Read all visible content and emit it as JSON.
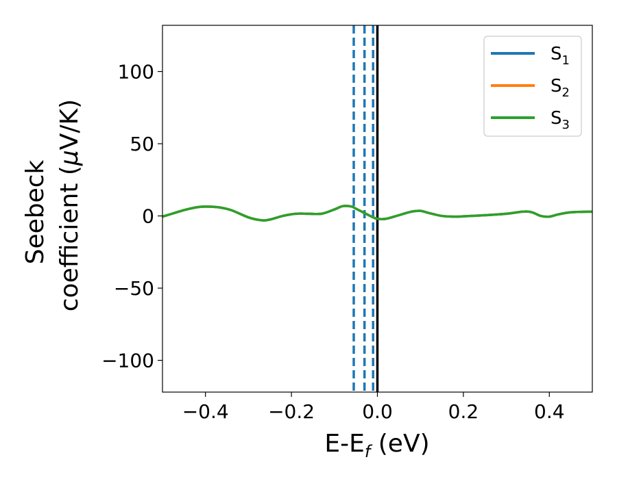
{
  "chart_data": {
    "type": "line",
    "xlabel": "E-E",
    "xlabel_sub": "f",
    "xlabel_unit": " (eV)",
    "ylabel_line1": "Seebeck",
    "ylabel_line2": "coefficient  (",
    "ylabel_mu": "μ",
    "ylabel_unit": "V/K)",
    "xlim": [
      -0.5,
      0.5
    ],
    "ylim": [
      -122,
      132
    ],
    "xticks": [
      -0.4,
      -0.2,
      0.0,
      0.2,
      0.4
    ],
    "xtick_labels": [
      "−0.4",
      "−0.2",
      "0.0",
      "0.2",
      "0.4"
    ],
    "yticks": [
      -100,
      -50,
      0,
      50,
      100
    ],
    "ytick_labels": [
      "−100",
      "−50",
      "0",
      "50",
      "100"
    ],
    "legend_position": "top-right",
    "x": [
      -0.5,
      -0.45,
      -0.42,
      -0.4,
      -0.37,
      -0.34,
      -0.3,
      -0.27,
      -0.25,
      -0.22,
      -0.19,
      -0.16,
      -0.13,
      -0.1,
      -0.08,
      -0.06,
      -0.05,
      -0.03,
      -0.01,
      0.0,
      0.02,
      0.05,
      0.08,
      0.1,
      0.12,
      0.15,
      0.18,
      0.2,
      0.25,
      0.3,
      0.34,
      0.36,
      0.38,
      0.4,
      0.42,
      0.45,
      0.5
    ],
    "series": [
      {
        "name": "S",
        "sub": "1",
        "color": "#1f77b4",
        "values": [
          -0.5,
          4,
          6,
          6.5,
          6,
          4,
          -1,
          -3,
          -2.5,
          0,
          1.5,
          1.5,
          1.5,
          4.5,
          6.8,
          6.5,
          5,
          2,
          -1,
          -2,
          -2,
          0.5,
          3,
          3.5,
          2,
          0,
          -0.5,
          -0.3,
          0.5,
          1.5,
          3,
          2.5,
          0,
          -0.5,
          1,
          2.5,
          3
        ]
      },
      {
        "name": "S",
        "sub": "2",
        "color": "#ff7f0e",
        "values": [
          -0.5,
          4,
          6,
          6.5,
          6,
          4,
          -1,
          -3,
          -2.5,
          0,
          1.5,
          1.5,
          1.5,
          4.5,
          6.8,
          6.5,
          5,
          2,
          -1,
          -2,
          -2,
          0.5,
          3,
          3.5,
          2,
          0,
          -0.5,
          -0.3,
          0.5,
          1.5,
          3,
          2.5,
          0,
          -0.5,
          1,
          2.5,
          3
        ]
      },
      {
        "name": "S",
        "sub": "3",
        "color": "#2ca02c",
        "values": [
          -0.5,
          4,
          6,
          6.5,
          6,
          4,
          -1,
          -3,
          -2.5,
          0,
          1.5,
          1.5,
          1.5,
          4.5,
          6.8,
          6.5,
          5,
          2,
          -1,
          -2,
          -2,
          0.5,
          3,
          3.5,
          2,
          0,
          -0.5,
          -0.3,
          0.5,
          1.5,
          3,
          2.5,
          0,
          -0.5,
          1,
          2.5,
          3
        ]
      }
    ],
    "vlines": [
      {
        "x": -0.055,
        "style": "dashed",
        "color": "#1f77b4"
      },
      {
        "x": -0.03,
        "style": "dashed",
        "color": "#1f77b4"
      },
      {
        "x": -0.01,
        "style": "dashed",
        "color": "#1f77b4"
      },
      {
        "x": 0.0,
        "style": "solid",
        "color": "#000000"
      }
    ]
  }
}
